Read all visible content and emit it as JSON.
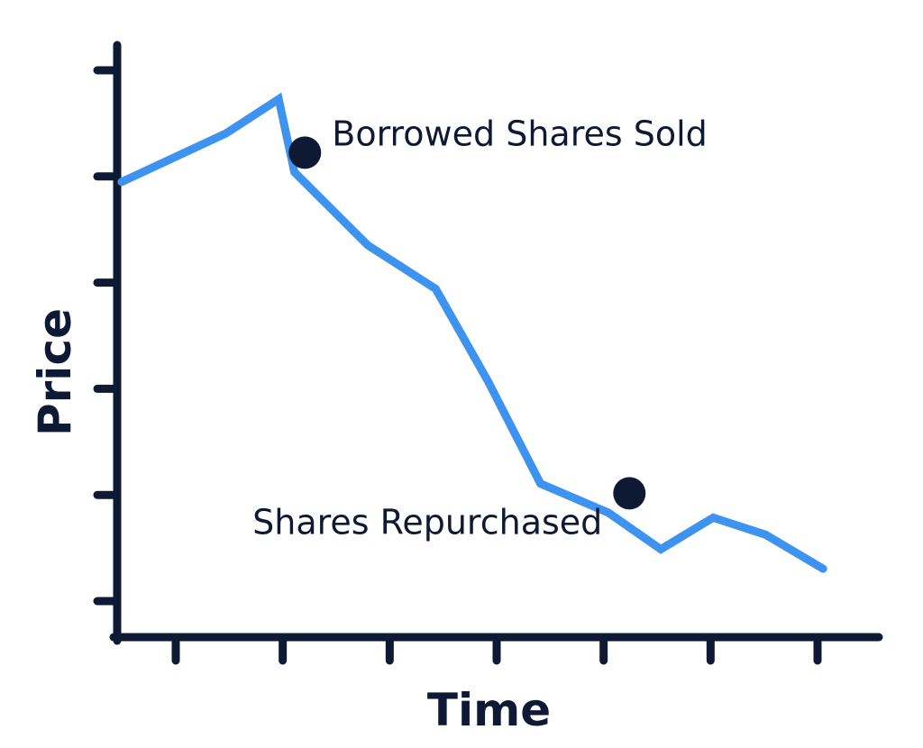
{
  "chart_data": {
    "type": "line",
    "title": "",
    "xlabel": "Time",
    "ylabel": "Price",
    "xlim": [
      0,
      14
    ],
    "ylim": [
      0,
      10
    ],
    "grid": false,
    "legend": "none",
    "x_tick_count": 7,
    "y_tick_count": 6,
    "series": [
      {
        "color": "#3d93ef",
        "points": [
          [
            0,
            8.3
          ],
          [
            1,
            8.8
          ],
          [
            2,
            9.3
          ],
          [
            3,
            10.0
          ],
          [
            3.3,
            8.5
          ],
          [
            4.7,
            7.0
          ],
          [
            6.0,
            6.1
          ],
          [
            7.0,
            4.2
          ],
          [
            8.0,
            2.1
          ],
          [
            9.3,
            1.5
          ],
          [
            10.3,
            0.75
          ],
          [
            11.3,
            1.4
          ],
          [
            12.3,
            1.05
          ],
          [
            13.4,
            0.35
          ]
        ]
      }
    ],
    "markers": [
      {
        "x": 3.5,
        "y": 8.9,
        "label": "Borrowed Shares Sold",
        "label_side": "right"
      },
      {
        "x": 9.7,
        "y": 1.9,
        "label": "Shares Repurchased",
        "label_side": "left"
      }
    ],
    "colors": {
      "axis": "#0e1a33",
      "line": "#3d93ef",
      "marker": "#0e1a33"
    }
  }
}
